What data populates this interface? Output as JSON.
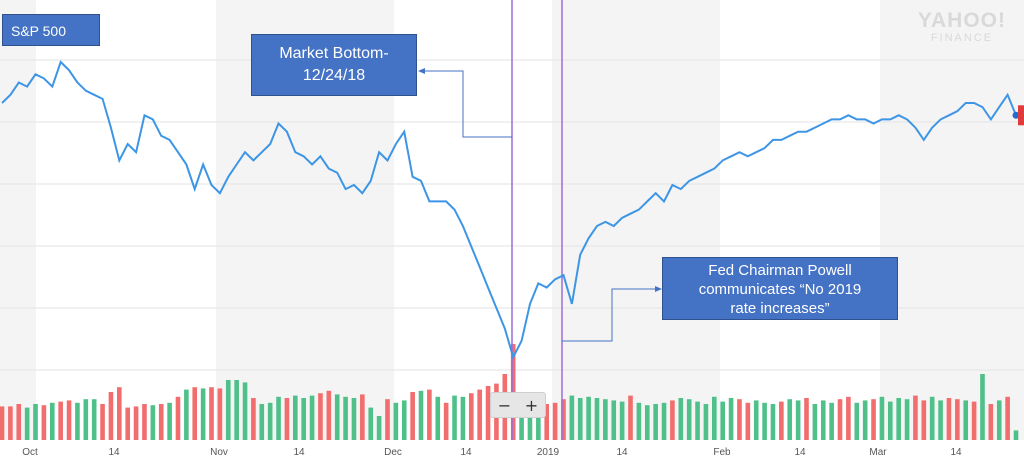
{
  "chart_data": {
    "type": "line",
    "title": "S&P 500",
    "watermark": [
      "YAHOO!",
      "FINANCE"
    ],
    "x_ticks": [
      "Oct",
      "14",
      "Nov",
      "14",
      "Dec",
      "14",
      "2019",
      "14",
      "Feb",
      "14",
      "Mar",
      "14"
    ],
    "line_color": "#3d95e6",
    "volume_up_color": "#4fc08a",
    "volume_down_color": "#f26d6d",
    "marker_color": "#9b6fd6",
    "price": [
      70,
      72,
      75,
      74,
      77,
      76,
      74,
      80,
      78,
      75,
      73,
      72,
      71,
      64,
      56,
      60,
      58,
      67,
      66,
      62,
      61,
      58,
      55,
      49,
      55,
      50,
      48,
      52,
      55,
      58,
      56,
      58,
      60,
      65,
      63,
      58,
      57,
      55,
      57,
      54,
      53,
      49,
      50,
      48,
      51,
      58,
      56,
      60,
      63,
      52,
      51,
      46,
      46,
      46,
      44,
      40,
      35,
      30,
      25,
      20,
      15,
      8,
      12,
      21,
      26,
      25,
      27,
      28,
      21,
      33,
      37,
      40,
      41,
      40,
      42,
      43,
      44,
      46,
      48,
      46,
      50,
      49,
      51,
      52,
      53,
      54,
      56,
      57,
      58,
      57,
      58,
      59,
      61,
      61,
      62,
      63,
      63,
      64,
      65,
      66,
      66,
      67,
      66,
      66,
      65,
      66,
      66,
      67,
      66,
      64,
      61,
      64,
      66,
      67,
      68,
      70,
      70,
      69,
      66,
      69,
      72,
      67
    ],
    "volume": [
      [
        0.28,
        0
      ],
      [
        0.28,
        0
      ],
      [
        0.3,
        0
      ],
      [
        0.27,
        1
      ],
      [
        0.3,
        1
      ],
      [
        0.29,
        0
      ],
      [
        0.31,
        1
      ],
      [
        0.32,
        0
      ],
      [
        0.33,
        0
      ],
      [
        0.31,
        1
      ],
      [
        0.34,
        1
      ],
      [
        0.34,
        1
      ],
      [
        0.3,
        0
      ],
      [
        0.4,
        0
      ],
      [
        0.44,
        0
      ],
      [
        0.27,
        0
      ],
      [
        0.28,
        0
      ],
      [
        0.3,
        0
      ],
      [
        0.29,
        1
      ],
      [
        0.3,
        0
      ],
      [
        0.31,
        1
      ],
      [
        0.36,
        0
      ],
      [
        0.42,
        1
      ],
      [
        0.44,
        0
      ],
      [
        0.43,
        1
      ],
      [
        0.44,
        0
      ],
      [
        0.43,
        0
      ],
      [
        0.5,
        1
      ],
      [
        0.5,
        1
      ],
      [
        0.48,
        1
      ],
      [
        0.35,
        0
      ],
      [
        0.3,
        1
      ],
      [
        0.31,
        1
      ],
      [
        0.36,
        1
      ],
      [
        0.35,
        0
      ],
      [
        0.37,
        1
      ],
      [
        0.35,
        1
      ],
      [
        0.37,
        1
      ],
      [
        0.39,
        0
      ],
      [
        0.41,
        0
      ],
      [
        0.38,
        1
      ],
      [
        0.36,
        1
      ],
      [
        0.35,
        1
      ],
      [
        0.38,
        0
      ],
      [
        0.27,
        1
      ],
      [
        0.2,
        1
      ],
      [
        0.34,
        0
      ],
      [
        0.31,
        1
      ],
      [
        0.33,
        1
      ],
      [
        0.4,
        0
      ],
      [
        0.41,
        1
      ],
      [
        0.42,
        0
      ],
      [
        0.36,
        1
      ],
      [
        0.31,
        0
      ],
      [
        0.37,
        1
      ],
      [
        0.36,
        1
      ],
      [
        0.39,
        0
      ],
      [
        0.42,
        0
      ],
      [
        0.45,
        0
      ],
      [
        0.47,
        0
      ],
      [
        0.55,
        0
      ],
      [
        0.8,
        0
      ],
      [
        0.3,
        1
      ],
      [
        0.35,
        1
      ],
      [
        0.34,
        1
      ],
      [
        0.3,
        0
      ],
      [
        0.31,
        0
      ],
      [
        0.34,
        0
      ],
      [
        0.37,
        1
      ],
      [
        0.35,
        1
      ],
      [
        0.36,
        1
      ],
      [
        0.35,
        1
      ],
      [
        0.34,
        1
      ],
      [
        0.33,
        1
      ],
      [
        0.32,
        1
      ],
      [
        0.37,
        0
      ],
      [
        0.31,
        1
      ],
      [
        0.29,
        1
      ],
      [
        0.3,
        1
      ],
      [
        0.31,
        1
      ],
      [
        0.33,
        0
      ],
      [
        0.35,
        1
      ],
      [
        0.34,
        1
      ],
      [
        0.32,
        1
      ],
      [
        0.3,
        1
      ],
      [
        0.36,
        1
      ],
      [
        0.32,
        1
      ],
      [
        0.35,
        1
      ],
      [
        0.34,
        0
      ],
      [
        0.31,
        0
      ],
      [
        0.33,
        1
      ],
      [
        0.31,
        1
      ],
      [
        0.3,
        1
      ],
      [
        0.32,
        0
      ],
      [
        0.34,
        1
      ],
      [
        0.33,
        1
      ],
      [
        0.35,
        0
      ],
      [
        0.3,
        1
      ],
      [
        0.33,
        1
      ],
      [
        0.31,
        1
      ],
      [
        0.34,
        0
      ],
      [
        0.36,
        0
      ],
      [
        0.31,
        1
      ],
      [
        0.33,
        1
      ],
      [
        0.34,
        0
      ],
      [
        0.36,
        1
      ],
      [
        0.32,
        1
      ],
      [
        0.35,
        1
      ],
      [
        0.34,
        1
      ],
      [
        0.37,
        0
      ],
      [
        0.33,
        0
      ],
      [
        0.36,
        1
      ],
      [
        0.33,
        1
      ],
      [
        0.35,
        0
      ],
      [
        0.34,
        0
      ],
      [
        0.33,
        1
      ],
      [
        0.32,
        0
      ],
      [
        0.55,
        1
      ],
      [
        0.3,
        0
      ],
      [
        0.33,
        1
      ],
      [
        0.36,
        0
      ],
      [
        0.08,
        1
      ]
    ]
  },
  "annotations": {
    "market_bottom": "Market Bottom-\n12/24/18",
    "fed": "Fed Chairman Powell\ncommunicates “No 2019\nrate increases”"
  },
  "zoom": {
    "minus": "−",
    "plus": "+"
  },
  "colors": {
    "callout_fill": "#4472c4",
    "callout_border": "#2f528f",
    "arrow": "#4472c4",
    "band": "#f4f4f4",
    "grid": "#e3e3e3"
  }
}
